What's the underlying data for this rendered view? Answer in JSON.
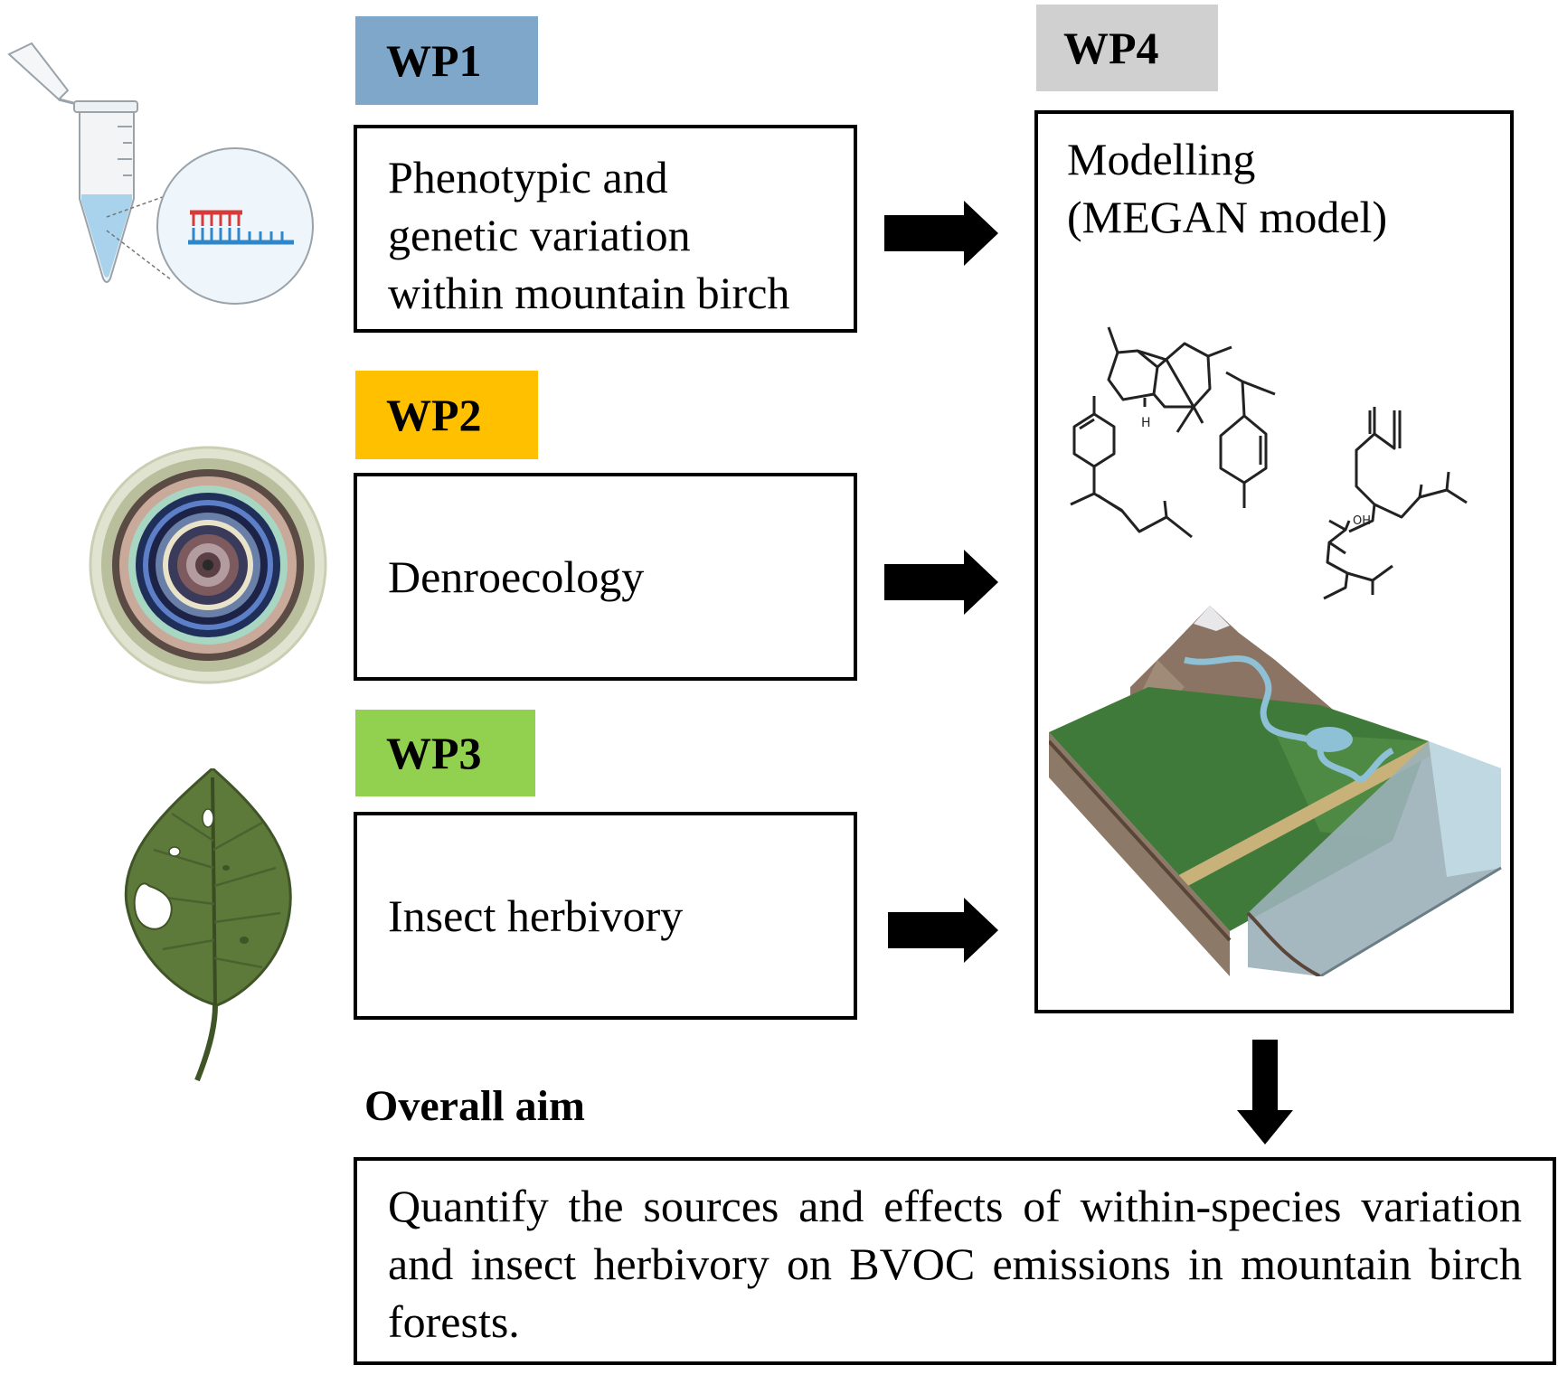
{
  "wp1": {
    "tag": "WP1",
    "color": "#7ea7c9",
    "text": [
      "Phenotypic and",
      "genetic variation",
      "within mountain birch"
    ]
  },
  "wp2": {
    "tag": "WP2",
    "color": "#ffc000",
    "text": "Denroecology"
  },
  "wp3": {
    "tag": "WP3",
    "color": "#92d050",
    "text": "Insect herbivory"
  },
  "wp4": {
    "tag": "WP4",
    "color": "#d0d0d0",
    "text": [
      "Modelling",
      "(MEGAN model)"
    ]
  },
  "overall": {
    "heading": "Overall aim",
    "text": "Quantify the sources and effects of within-species variation and insect herbivory on BVOC emissions in mountain birch forests."
  },
  "molecule_labels": {
    "h": "H",
    "oh": "OH"
  },
  "icons": [
    "test-tube-dna-icon",
    "tree-rings-icon",
    "damaged-leaf-icon",
    "molecule-structures-icon",
    "mountain-landscape-icon"
  ]
}
